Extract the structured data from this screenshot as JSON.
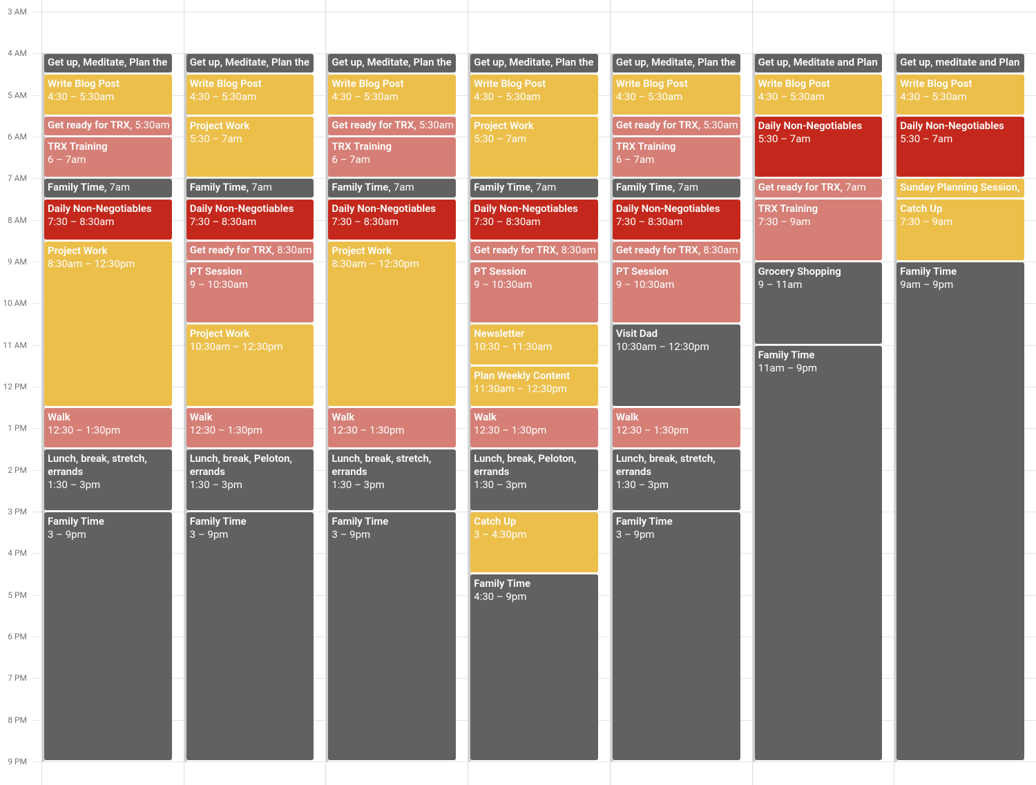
{
  "hours": [
    "3 AM",
    "4 AM",
    "5 AM",
    "6 AM",
    "7 AM",
    "8 AM",
    "9 AM",
    "10 AM",
    "11 AM",
    "12 PM",
    "1 PM",
    "2 PM",
    "3 PM",
    "4 PM",
    "5 PM",
    "6 PM",
    "7 PM",
    "8 PM",
    "9 PM"
  ],
  "days": [
    {
      "events": [
        {
          "title": "Get up, Meditate, Plan the",
          "color": "#616161"
        },
        {
          "title": "Write Blog Post",
          "time": "4:30 – 5:30am",
          "color": "#ecbf4b"
        },
        {
          "title": "Get ready for TRX,",
          "time": "5:30am",
          "color": "#d57f76"
        },
        {
          "title": "TRX Training",
          "time": "6 – 7am",
          "color": "#d57f76"
        },
        {
          "title": "Family Time,",
          "time": "7am",
          "color": "#616161"
        },
        {
          "title": "Daily Non-Negotiables",
          "time": "7:30 – 8:30am",
          "color": "#c4281c"
        },
        {
          "title": "Project Work",
          "time": "8:30am – 12:30pm",
          "color": "#ecbf4b"
        },
        {
          "title": "Walk",
          "time": "12:30 – 1:30pm",
          "color": "#d57f76"
        },
        {
          "title": "Lunch, break, stretch, errands",
          "time": "1:30 – 3pm",
          "color": "#616161"
        },
        {
          "title": "Family Time",
          "time": "3 – 9pm",
          "color": "#616161"
        }
      ]
    },
    {
      "events": [
        {
          "title": "Get up, Meditate, Plan the",
          "color": "#616161"
        },
        {
          "title": "Write Blog Post",
          "time": "4:30 – 5:30am",
          "color": "#ecbf4b"
        },
        {
          "title": "Project Work",
          "time": "5:30 – 7am",
          "color": "#ecbf4b"
        },
        {
          "title": "Family Time,",
          "time": "7am",
          "color": "#616161"
        },
        {
          "title": "Daily Non-Negotiables",
          "time": "7:30 – 8:30am",
          "color": "#c4281c"
        },
        {
          "title": "Get ready for TRX,",
          "time": "8:30am",
          "color": "#d57f76"
        },
        {
          "title": "PT Session",
          "time": "9 – 10:30am",
          "color": "#d57f76"
        },
        {
          "title": "Project Work",
          "time": "10:30am – 12:30pm",
          "color": "#ecbf4b"
        },
        {
          "title": "Walk",
          "time": "12:30 – 1:30pm",
          "color": "#d57f76"
        },
        {
          "title": "Lunch, break, Peloton, errands",
          "time": "1:30 – 3pm",
          "color": "#616161"
        },
        {
          "title": "Family Time",
          "time": "3 – 9pm",
          "color": "#616161"
        }
      ]
    },
    {
      "events": [
        {
          "title": "Get up, Meditate, Plan the",
          "color": "#616161"
        },
        {
          "title": "Write Blog Post",
          "time": "4:30 – 5:30am",
          "color": "#ecbf4b"
        },
        {
          "title": "Get ready for TRX,",
          "time": "5:30am",
          "color": "#d57f76"
        },
        {
          "title": "TRX Training",
          "time": "6 – 7am",
          "color": "#d57f76"
        },
        {
          "title": "Family Time,",
          "time": "7am",
          "color": "#616161"
        },
        {
          "title": "Daily Non-Negotiables",
          "time": "7:30 – 8:30am",
          "color": "#c4281c"
        },
        {
          "title": "Project Work",
          "time": "8:30am – 12:30pm",
          "color": "#ecbf4b"
        },
        {
          "title": "Walk",
          "time": "12:30 – 1:30pm",
          "color": "#d57f76"
        },
        {
          "title": "Lunch, break, stretch, errands",
          "time": "1:30 – 3pm",
          "color": "#616161"
        },
        {
          "title": "Family Time",
          "time": "3 – 9pm",
          "color": "#616161"
        }
      ]
    },
    {
      "events": [
        {
          "title": "Get up, Meditate, Plan the",
          "color": "#616161"
        },
        {
          "title": "Write Blog Post",
          "time": "4:30 – 5:30am",
          "color": "#ecbf4b"
        },
        {
          "title": "Project Work",
          "time": "5:30 – 7am",
          "color": "#ecbf4b"
        },
        {
          "title": "Family Time,",
          "time": "7am",
          "color": "#616161"
        },
        {
          "title": "Daily Non-Negotiables",
          "time": "7:30 – 8:30am",
          "color": "#c4281c"
        },
        {
          "title": "Get ready for TRX,",
          "time": "8:30am",
          "color": "#d57f76"
        },
        {
          "title": "PT Session",
          "time": "9 – 10:30am",
          "color": "#d57f76"
        },
        {
          "title": "Newsletter",
          "time": "10:30 – 11:30am",
          "color": "#ecbf4b"
        },
        {
          "title": "Plan Weekly Content",
          "time": "11:30am – 12:30pm",
          "color": "#ecbf4b"
        },
        {
          "title": "Walk",
          "time": "12:30 – 1:30pm",
          "color": "#d57f76"
        },
        {
          "title": "Lunch, break, Peloton, errands",
          "time": "1:30 – 3pm",
          "color": "#616161"
        },
        {
          "title": "Catch Up",
          "time": "3 – 4:30pm",
          "color": "#ecbf4b"
        },
        {
          "title": "Family Time",
          "time": "4:30 – 9pm",
          "color": "#616161"
        }
      ]
    },
    {
      "events": [
        {
          "title": "Get up, Meditate, Plan the",
          "color": "#616161"
        },
        {
          "title": "Write Blog Post",
          "time": "4:30 – 5:30am",
          "color": "#ecbf4b"
        },
        {
          "title": "Get ready for TRX,",
          "time": "5:30am",
          "color": "#d57f76"
        },
        {
          "title": "TRX Training",
          "time": "6 – 7am",
          "color": "#d57f76"
        },
        {
          "title": "Family Time,",
          "time": "7am",
          "color": "#616161"
        },
        {
          "title": "Daily Non-Negotiables",
          "time": "7:30 – 8:30am",
          "color": "#c4281c"
        },
        {
          "title": "Get ready for TRX,",
          "time": "8:30am",
          "color": "#d57f76"
        },
        {
          "title": "PT Session",
          "time": "9 – 10:30am",
          "color": "#d57f76"
        },
        {
          "title": "Visit Dad",
          "time": "10:30am – 12:30pm",
          "color": "#616161"
        },
        {
          "title": "Walk",
          "time": "12:30 – 1:30pm",
          "color": "#d57f76"
        },
        {
          "title": "Lunch, break, stretch, errands",
          "time": "1:30 – 3pm",
          "color": "#616161"
        },
        {
          "title": "Family Time",
          "time": "3 – 9pm",
          "color": "#616161"
        }
      ]
    },
    {
      "events": [
        {
          "title": "Get up, Meditate and Plan",
          "color": "#616161"
        },
        {
          "title": "Write Blog Post",
          "time": "4:30 – 5:30am",
          "color": "#ecbf4b"
        },
        {
          "title": "Daily Non-Negotiables",
          "time": "5:30 – 7am",
          "color": "#c4281c"
        },
        {
          "title": "Get ready for TRX,",
          "time": "7am",
          "color": "#d57f76"
        },
        {
          "title": "TRX Training",
          "time": "7:30 – 9am",
          "color": "#d57f76"
        },
        {
          "title": "Grocery Shopping",
          "time": "9 – 11am",
          "color": "#616161"
        },
        {
          "title": "Family Time",
          "time": "11am – 9pm",
          "color": "#616161"
        }
      ]
    },
    {
      "events": [
        {
          "title": "Get up, meditate and Plan",
          "color": "#616161"
        },
        {
          "title": "Write Blog Post",
          "time": "4:30 – 5:30am",
          "color": "#ecbf4b"
        },
        {
          "title": "Daily Non-Negotiables",
          "time": "5:30 – 7am",
          "color": "#c4281c"
        },
        {
          "title": "Sunday Planning Session,",
          "color": "#ecbf4b"
        },
        {
          "title": "Catch Up",
          "time": "7:30 – 9am",
          "color": "#ecbf4b"
        },
        {
          "title": "Family Time",
          "time": "9am – 9pm",
          "color": "#616161"
        }
      ]
    }
  ]
}
